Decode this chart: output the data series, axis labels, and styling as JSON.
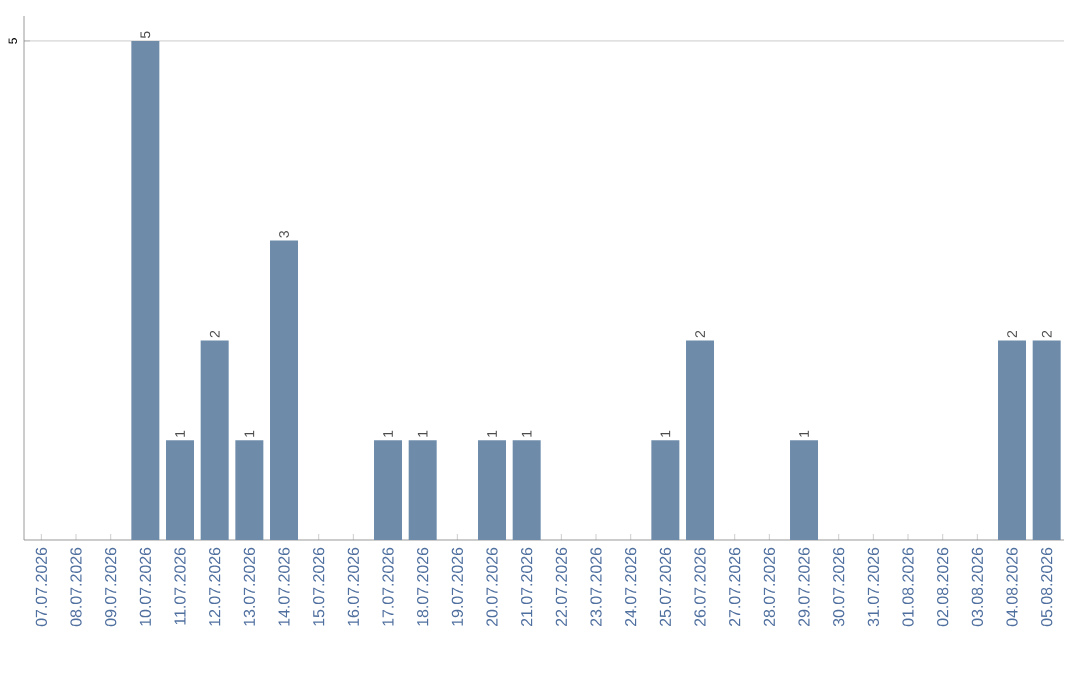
{
  "chart_data": {
    "type": "bar",
    "categories": [
      "07.07.2026",
      "08.07.2026",
      "09.07.2026",
      "10.07.2026",
      "11.07.2026",
      "12.07.2026",
      "13.07.2026",
      "14.07.2026",
      "15.07.2026",
      "16.07.2026",
      "17.07.2026",
      "18.07.2026",
      "19.07.2026",
      "20.07.2026",
      "21.07.2026",
      "22.07.2026",
      "23.07.2026",
      "24.07.2026",
      "25.07.2026",
      "26.07.2026",
      "27.07.2026",
      "28.07.2026",
      "29.07.2026",
      "30.07.2026",
      "31.07.2026",
      "01.08.2026",
      "02.08.2026",
      "03.08.2026",
      "04.08.2026",
      "05.08.2026"
    ],
    "values": [
      0,
      0,
      0,
      5,
      1,
      2,
      1,
      3,
      0,
      0,
      1,
      1,
      0,
      1,
      1,
      0,
      0,
      0,
      1,
      2,
      0,
      0,
      1,
      0,
      0,
      0,
      0,
      0,
      2,
      2
    ],
    "value_labels": [
      null,
      null,
      null,
      "5",
      "1",
      "2",
      "1",
      "3",
      null,
      null,
      "1",
      "1",
      null,
      "1",
      "1",
      null,
      null,
      null,
      "1",
      "2",
      null,
      null,
      "1",
      null,
      null,
      null,
      null,
      null,
      "2",
      "2"
    ],
    "color": "#6e8caa",
    "ylim": [
      0,
      5.25
    ],
    "yticks": [
      5
    ],
    "grid": "y"
  }
}
